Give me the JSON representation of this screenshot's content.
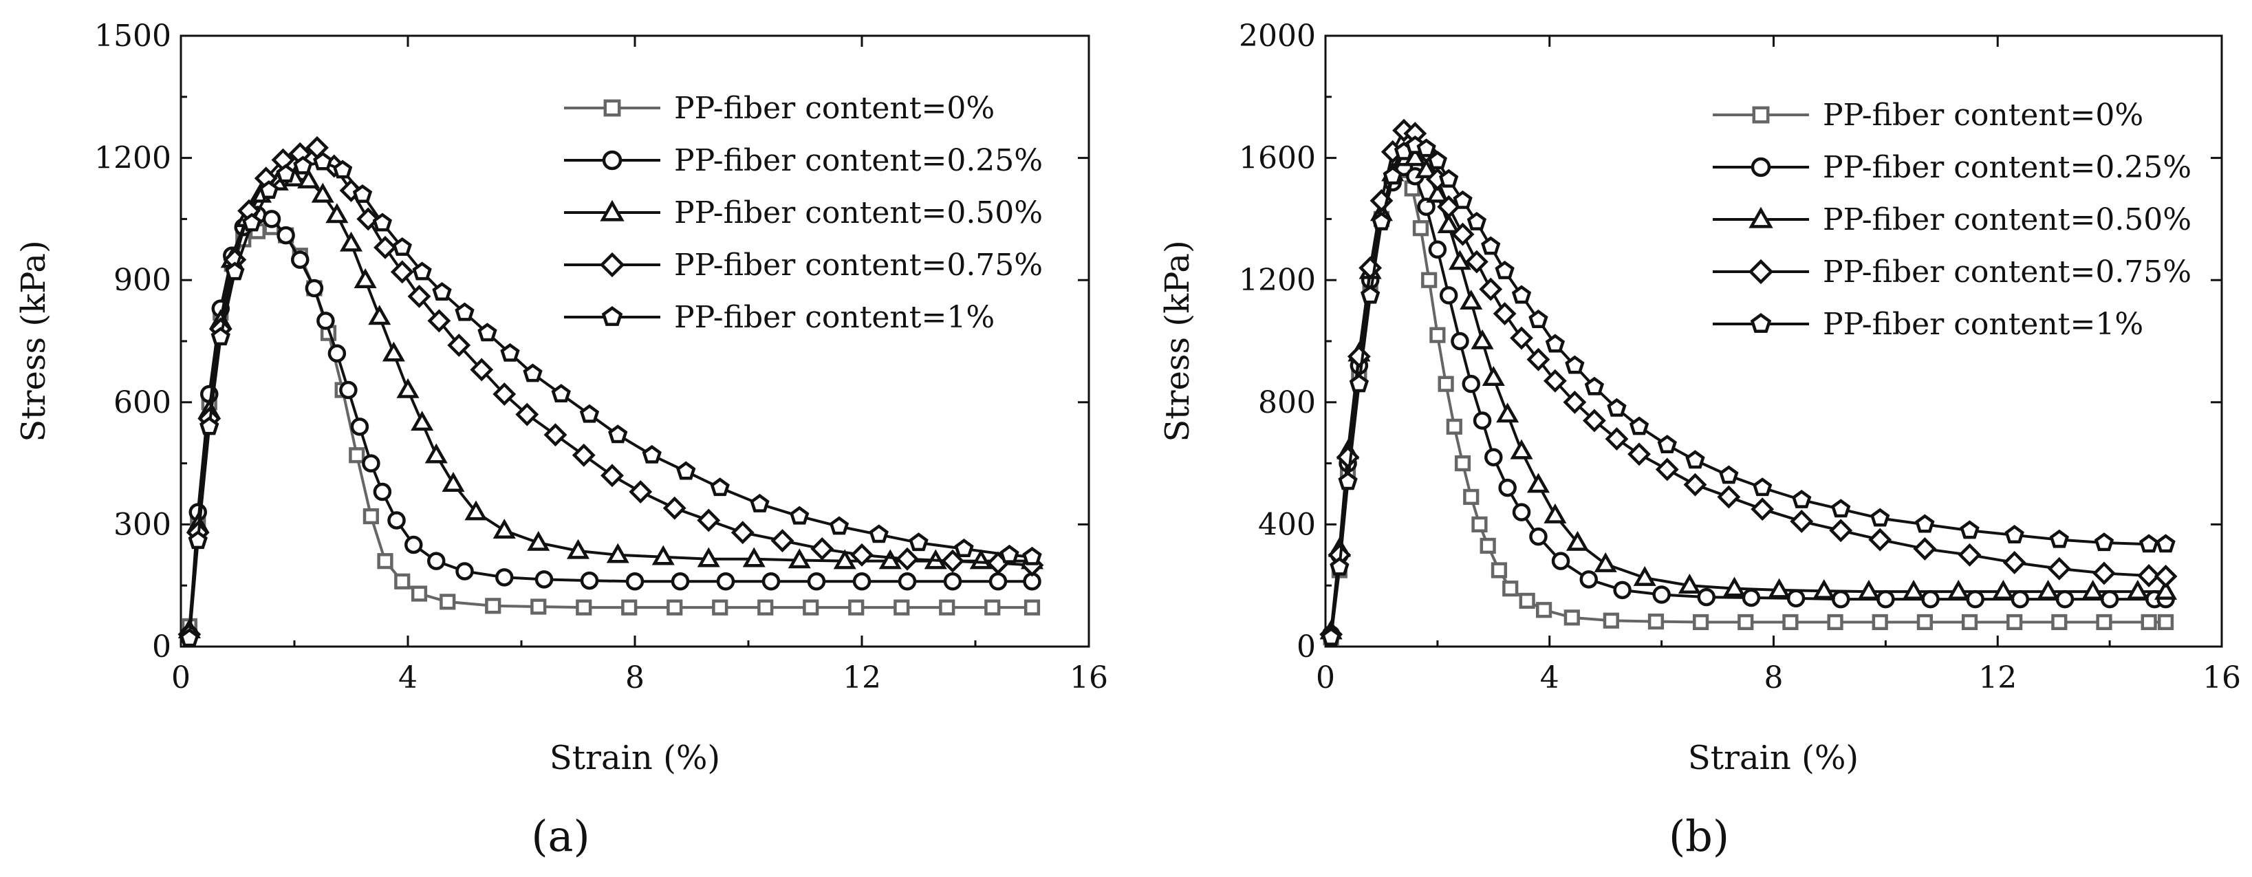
{
  "figure": {
    "panel_labels": [
      "(a)",
      "(b)"
    ]
  },
  "chart_data": [
    {
      "type": "line",
      "panel": "(a)",
      "xlabel": "Strain (%)",
      "ylabel": "Stress (kPa)",
      "xlim": [
        0,
        16
      ],
      "ylim": [
        0,
        1500
      ],
      "xticks": [
        0,
        4,
        8,
        12,
        16
      ],
      "yticks": [
        0,
        300,
        600,
        900,
        1200,
        1500
      ],
      "legend_position": "top-right",
      "series": [
        {
          "name": "PP-fiber content=0%",
          "marker": "square",
          "color": "#666666",
          "x": [
            0.15,
            0.3,
            0.5,
            0.7,
            0.9,
            1.1,
            1.35,
            1.6,
            1.85,
            2.1,
            2.35,
            2.6,
            2.85,
            3.1,
            3.35,
            3.6,
            3.9,
            4.2,
            4.7,
            5.5,
            6.3,
            7.1,
            7.9,
            8.7,
            9.5,
            10.3,
            11.1,
            11.9,
            12.7,
            13.5,
            14.3,
            15.0
          ],
          "y": [
            50,
            300,
            600,
            820,
            940,
            1000,
            1020,
            1030,
            1010,
            960,
            880,
            770,
            630,
            470,
            320,
            210,
            160,
            130,
            110,
            100,
            98,
            96,
            96,
            96,
            96,
            96,
            96,
            96,
            96,
            96,
            96,
            96
          ]
        },
        {
          "name": "PP-fiber content=0.25%",
          "marker": "circle",
          "color": "#111111",
          "x": [
            0.15,
            0.3,
            0.5,
            0.7,
            0.9,
            1.1,
            1.35,
            1.6,
            1.85,
            2.1,
            2.35,
            2.55,
            2.75,
            2.95,
            3.15,
            3.35,
            3.55,
            3.8,
            4.1,
            4.5,
            5.0,
            5.7,
            6.4,
            7.2,
            8.0,
            8.8,
            9.6,
            10.4,
            11.2,
            12.0,
            12.8,
            13.6,
            14.4,
            15.0
          ],
          "y": [
            30,
            330,
            620,
            830,
            960,
            1030,
            1060,
            1050,
            1010,
            950,
            880,
            800,
            720,
            630,
            540,
            450,
            380,
            310,
            250,
            210,
            185,
            170,
            165,
            162,
            160,
            160,
            160,
            160,
            160,
            160,
            160,
            160,
            160,
            160
          ]
        },
        {
          "name": "PP-fiber content=0.50%",
          "marker": "triangle",
          "color": "#111111",
          "x": [
            0.15,
            0.3,
            0.5,
            0.7,
            0.9,
            1.15,
            1.4,
            1.7,
            2.0,
            2.25,
            2.5,
            2.75,
            3.0,
            3.25,
            3.5,
            3.75,
            4.0,
            4.25,
            4.5,
            4.8,
            5.2,
            5.7,
            6.3,
            7.0,
            7.7,
            8.5,
            9.3,
            10.1,
            10.9,
            11.7,
            12.5,
            13.3,
            14.1,
            15.0
          ],
          "y": [
            40,
            300,
            580,
            800,
            950,
            1050,
            1110,
            1140,
            1150,
            1145,
            1110,
            1060,
            990,
            900,
            810,
            720,
            630,
            550,
            470,
            400,
            330,
            285,
            255,
            235,
            225,
            220,
            215,
            215,
            212,
            210,
            210,
            210,
            210,
            210
          ]
        },
        {
          "name": "PP-fiber content=0.75%",
          "marker": "diamond",
          "color": "#111111",
          "x": [
            0.15,
            0.3,
            0.5,
            0.7,
            0.95,
            1.2,
            1.5,
            1.8,
            2.1,
            2.4,
            2.7,
            3.0,
            3.3,
            3.6,
            3.9,
            4.2,
            4.55,
            4.9,
            5.3,
            5.7,
            6.1,
            6.6,
            7.1,
            7.6,
            8.1,
            8.7,
            9.3,
            9.9,
            10.6,
            11.3,
            12.0,
            12.8,
            13.6,
            14.4,
            15.0
          ],
          "y": [
            30,
            280,
            560,
            780,
            950,
            1070,
            1150,
            1195,
            1210,
            1225,
            1180,
            1120,
            1050,
            980,
            920,
            860,
            800,
            740,
            680,
            620,
            570,
            520,
            470,
            420,
            380,
            340,
            310,
            280,
            260,
            240,
            225,
            215,
            210,
            205,
            200
          ]
        },
        {
          "name": "PP-fiber content=1%",
          "marker": "pentagon",
          "color": "#111111",
          "x": [
            0.15,
            0.3,
            0.5,
            0.7,
            0.95,
            1.25,
            1.55,
            1.85,
            2.15,
            2.5,
            2.85,
            3.2,
            3.55,
            3.9,
            4.25,
            4.6,
            5.0,
            5.4,
            5.8,
            6.2,
            6.7,
            7.2,
            7.7,
            8.3,
            8.9,
            9.5,
            10.2,
            10.9,
            11.6,
            12.3,
            13.0,
            13.8,
            14.6,
            15.0
          ],
          "y": [
            20,
            260,
            540,
            760,
            920,
            1040,
            1120,
            1160,
            1180,
            1190,
            1170,
            1110,
            1040,
            980,
            920,
            870,
            820,
            770,
            720,
            670,
            620,
            570,
            520,
            470,
            430,
            390,
            350,
            320,
            295,
            275,
            255,
            240,
            225,
            220
          ]
        }
      ]
    },
    {
      "type": "line",
      "panel": "(b)",
      "xlabel": "Strain (%)",
      "ylabel": "Stress (kPa)",
      "xlim": [
        0,
        16
      ],
      "ylim": [
        0,
        2000
      ],
      "xticks": [
        0,
        4,
        8,
        12,
        16
      ],
      "yticks": [
        0,
        400,
        800,
        1200,
        1600,
        2000
      ],
      "legend_position": "top-right",
      "series": [
        {
          "name": "PP-fiber content=0%",
          "marker": "square",
          "color": "#666666",
          "x": [
            0.1,
            0.25,
            0.4,
            0.6,
            0.8,
            1.0,
            1.2,
            1.4,
            1.55,
            1.7,
            1.85,
            2.0,
            2.15,
            2.3,
            2.45,
            2.6,
            2.75,
            2.9,
            3.1,
            3.3,
            3.6,
            3.9,
            4.4,
            5.1,
            5.9,
            6.7,
            7.5,
            8.3,
            9.1,
            9.9,
            10.7,
            11.5,
            12.3,
            13.1,
            13.9,
            14.7,
            15.0
          ],
          "y": [
            30,
            250,
            560,
            880,
            1180,
            1400,
            1530,
            1560,
            1500,
            1370,
            1200,
            1020,
            860,
            720,
            600,
            490,
            400,
            330,
            250,
            190,
            150,
            120,
            95,
            85,
            82,
            80,
            80,
            80,
            80,
            80,
            80,
            80,
            80,
            80,
            80,
            80,
            80
          ]
        },
        {
          "name": "PP-fiber content=0.25%",
          "marker": "circle",
          "color": "#111111",
          "x": [
            0.1,
            0.25,
            0.4,
            0.6,
            0.8,
            1.0,
            1.2,
            1.4,
            1.6,
            1.8,
            2.0,
            2.2,
            2.4,
            2.6,
            2.8,
            3.0,
            3.25,
            3.5,
            3.8,
            4.2,
            4.7,
            5.3,
            6.0,
            6.8,
            7.6,
            8.4,
            9.2,
            10.0,
            10.8,
            11.6,
            12.4,
            13.2,
            14.0,
            14.8,
            15.0
          ],
          "y": [
            40,
            300,
            600,
            920,
            1200,
            1400,
            1520,
            1570,
            1540,
            1440,
            1300,
            1150,
            1000,
            860,
            740,
            620,
            520,
            440,
            360,
            280,
            220,
            185,
            170,
            162,
            160,
            158,
            155,
            155,
            155,
            155,
            155,
            155,
            155,
            155,
            155
          ]
        },
        {
          "name": "PP-fiber content=0.50%",
          "marker": "triangle",
          "color": "#111111",
          "x": [
            0.1,
            0.25,
            0.4,
            0.6,
            0.8,
            1.0,
            1.2,
            1.4,
            1.6,
            1.8,
            2.0,
            2.2,
            2.4,
            2.6,
            2.8,
            3.0,
            3.25,
            3.5,
            3.8,
            4.1,
            4.5,
            5.0,
            5.7,
            6.5,
            7.3,
            8.1,
            8.9,
            9.7,
            10.5,
            11.3,
            12.1,
            12.9,
            13.7,
            14.5,
            15.0
          ],
          "y": [
            50,
            320,
            640,
            960,
            1230,
            1420,
            1550,
            1600,
            1600,
            1560,
            1480,
            1380,
            1260,
            1130,
            1000,
            880,
            760,
            640,
            530,
            430,
            340,
            270,
            225,
            200,
            190,
            185,
            182,
            180,
            180,
            180,
            180,
            180,
            180,
            180,
            180
          ]
        },
        {
          "name": "PP-fiber content=0.75%",
          "marker": "diamond",
          "color": "#111111",
          "x": [
            0.1,
            0.25,
            0.4,
            0.6,
            0.8,
            1.0,
            1.2,
            1.4,
            1.6,
            1.8,
            2.0,
            2.2,
            2.45,
            2.7,
            2.95,
            3.2,
            3.5,
            3.8,
            4.1,
            4.45,
            4.8,
            5.2,
            5.6,
            6.1,
            6.6,
            7.2,
            7.8,
            8.5,
            9.2,
            9.9,
            10.7,
            11.5,
            12.3,
            13.1,
            13.9,
            14.7,
            15.0
          ],
          "y": [
            40,
            300,
            620,
            950,
            1240,
            1460,
            1620,
            1690,
            1680,
            1620,
            1530,
            1440,
            1350,
            1260,
            1170,
            1090,
            1010,
            940,
            870,
            800,
            740,
            680,
            630,
            580,
            530,
            490,
            450,
            410,
            380,
            350,
            320,
            300,
            275,
            255,
            240,
            232,
            230
          ]
        },
        {
          "name": "PP-fiber content=1%",
          "marker": "pentagon",
          "color": "#111111",
          "x": [
            0.1,
            0.25,
            0.4,
            0.6,
            0.8,
            1.0,
            1.2,
            1.4,
            1.6,
            1.8,
            2.0,
            2.2,
            2.45,
            2.7,
            2.95,
            3.2,
            3.5,
            3.8,
            4.1,
            4.45,
            4.8,
            5.2,
            5.6,
            6.1,
            6.6,
            7.2,
            7.8,
            8.5,
            9.2,
            9.9,
            10.7,
            11.5,
            12.3,
            13.1,
            13.9,
            14.7,
            15.0
          ],
          "y": [
            30,
            260,
            540,
            860,
            1150,
            1390,
            1540,
            1620,
            1640,
            1630,
            1590,
            1530,
            1460,
            1390,
            1310,
            1230,
            1150,
            1070,
            990,
            920,
            850,
            780,
            720,
            660,
            610,
            560,
            520,
            480,
            450,
            420,
            400,
            380,
            365,
            350,
            340,
            335,
            335
          ]
        }
      ]
    }
  ]
}
